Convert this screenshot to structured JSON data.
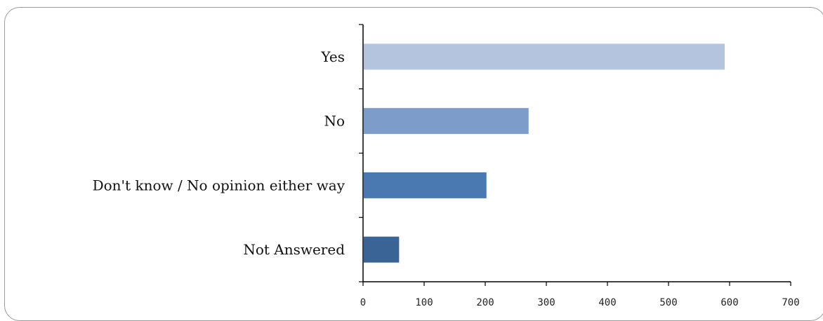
{
  "chart_data": {
    "type": "bar",
    "orientation": "horizontal",
    "categories": [
      "Yes",
      "No",
      "Don't know / No opinion either way",
      "Not Answered"
    ],
    "values": [
      592,
      271,
      202,
      59
    ],
    "colors": [
      "#b4c3de",
      "#7e9cca",
      "#4a78b0",
      "#3a6396"
    ],
    "xlim": [
      0,
      700
    ],
    "xticks": [
      0,
      100,
      200,
      300,
      400,
      500,
      600,
      700
    ],
    "title": "",
    "xlabel": "",
    "ylabel": "",
    "grid": false,
    "legend": "none"
  }
}
